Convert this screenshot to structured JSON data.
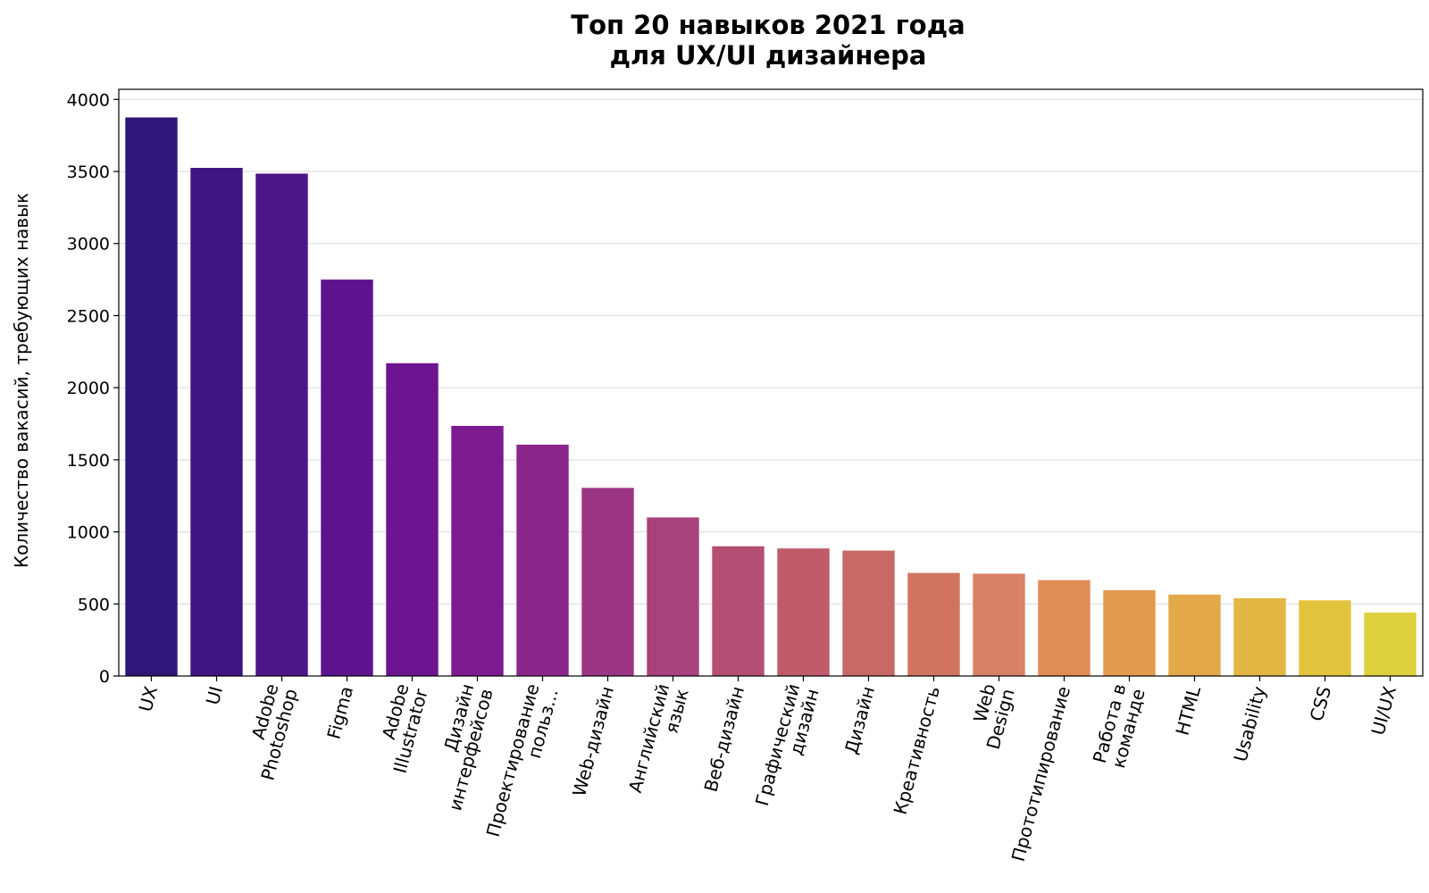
{
  "chart_data": {
    "type": "bar",
    "title": [
      "Топ 20 навыков 2021 года",
      "для UX/UI дизайнера"
    ],
    "xlabel": "",
    "ylabel": "Количество вакасий, требующих навык",
    "ylim": [
      0,
      4070
    ],
    "yticks": [
      0,
      500,
      1000,
      1500,
      2000,
      2500,
      3000,
      3500,
      4000
    ],
    "grid": "horizontal",
    "categories": [
      [
        "UX"
      ],
      [
        "UI"
      ],
      [
        "Adobe",
        "Photoshop"
      ],
      [
        "Figma"
      ],
      [
        "Adobe",
        "Illustrator"
      ],
      [
        "Дизайн",
        "интерфейсов"
      ],
      [
        "Проектирование",
        "польз..."
      ],
      [
        "Web-дизайн"
      ],
      [
        "Английский",
        "язык"
      ],
      [
        "Веб-дизайн"
      ],
      [
        "Графический",
        "дизайн"
      ],
      [
        "Дизайн"
      ],
      [
        "Креативность"
      ],
      [
        "Web",
        "Design"
      ],
      [
        "Прототипирование"
      ],
      [
        "Работа в",
        "команде"
      ],
      [
        "HTML"
      ],
      [
        "Usability"
      ],
      [
        "CSS"
      ],
      [
        "UI/UX"
      ]
    ],
    "values": [
      3875,
      3525,
      3485,
      2750,
      2170,
      1735,
      1605,
      1305,
      1100,
      900,
      885,
      870,
      715,
      710,
      665,
      595,
      565,
      540,
      525,
      440
    ],
    "colors": [
      "#2f1679",
      "#3e1583",
      "#4c1588",
      "#5c138d",
      "#6d1490",
      "#7d1a90",
      "#8b268b",
      "#9b3584",
      "#a8427b",
      "#b44f73",
      "#c05b6c",
      "#c96966",
      "#d1745f",
      "#d98166",
      "#df8c55",
      "#e29a4f",
      "#e3a84a",
      "#e3b744",
      "#e2c33d",
      "#dcd13c"
    ]
  }
}
